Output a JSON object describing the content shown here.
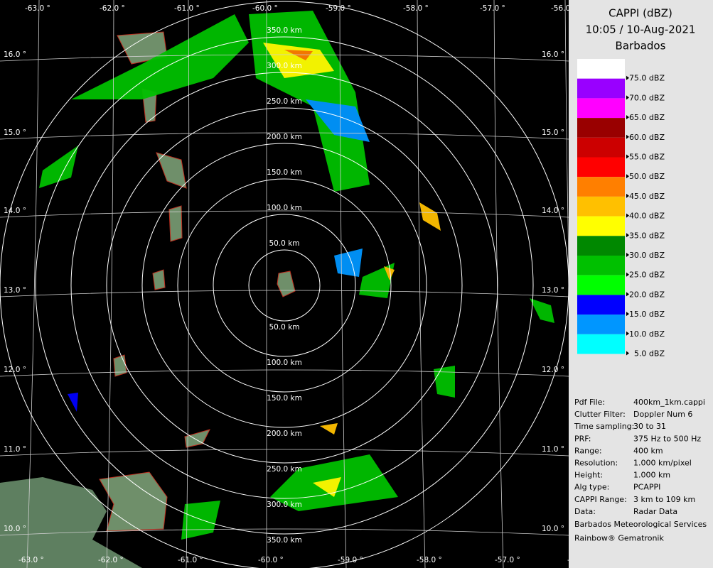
{
  "product": {
    "title": "CAPPI (dBZ)",
    "time": "10:05 / 10-Aug-2021",
    "site": "Barbados"
  },
  "legend": [
    {
      "label": "75.0 dBZ",
      "color": "#ffffff"
    },
    {
      "label": "70.0 dBZ",
      "color": "#9900ff"
    },
    {
      "label": "65.0 dBZ",
      "color": "#ff00ff"
    },
    {
      "label": "60.0 dBZ",
      "color": "#990000"
    },
    {
      "label": "55.0 dBZ",
      "color": "#cc0000"
    },
    {
      "label": "50.0 dBZ",
      "color": "#ff0000"
    },
    {
      "label": "45.0 dBZ",
      "color": "#ff7f00"
    },
    {
      "label": "40.0 dBZ",
      "color": "#ffc000"
    },
    {
      "label": "35.0 dBZ",
      "color": "#ffff00"
    },
    {
      "label": "30.0 dBZ",
      "color": "#008800"
    },
    {
      "label": "25.0 dBZ",
      "color": "#00c000"
    },
    {
      "label": "20.0 dBZ",
      "color": "#00ff00"
    },
    {
      "label": "15.0 dBZ",
      "color": "#0000ff"
    },
    {
      "label": "10.0 dBZ",
      "color": "#0096ff"
    },
    {
      "label": "5.0 dBZ",
      "color": "#00ffff"
    }
  ],
  "info": [
    [
      "Pdf File:",
      "400km_1km.cappi"
    ],
    [
      "Clutter Filter:",
      "Doppler Num 6"
    ],
    [
      "Time sampling:",
      "30 to 31"
    ],
    [
      "PRF:",
      "375 Hz to 500 Hz"
    ],
    [
      "Range:",
      "400 km"
    ],
    [
      "Resolution:",
      "1.000 km/pixel"
    ],
    [
      "Height:",
      "1.000 km"
    ],
    [
      "Alg type:",
      "PCAPPI"
    ],
    [
      "CAPPI Range:",
      "3 km to 109 km"
    ],
    [
      "Data:",
      "Radar Data"
    ]
  ],
  "footer": [
    "Barbados Meteorological Services",
    "Rainbow® Gematronik"
  ],
  "map": {
    "lon_labels": [
      "-63.0 °",
      "-62.0 °",
      "-61.0 °",
      "-60.0 °",
      "-59.0 °",
      "-58.0 °",
      "-57.0 °",
      "-56.0 °"
    ],
    "lat_labels": [
      "16.0 °",
      "15.0 °",
      "14.0 °",
      "13.0 °",
      "12.0 °",
      "11.0 °",
      "10.0 °"
    ],
    "range_labels": [
      "50.0 km",
      "100.0 km",
      "150.0 km",
      "200.0 km",
      "250.0 km",
      "300.0 km",
      "350.0 km"
    ]
  }
}
